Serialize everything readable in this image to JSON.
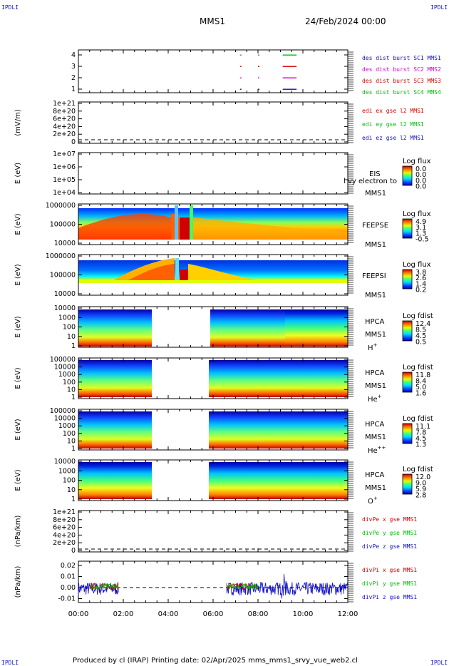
{
  "corner_label": "IPDLI",
  "header": {
    "spacecraft": "MMS1",
    "date": "24/Feb/2024 00:00"
  },
  "footer": "Produced by cl (IRAP)   Printing date: 02/Apr/2025   mms_mms1_srvy_vue_web2.cl",
  "colors": {
    "mms1": "#1010c8",
    "mms2": "#d000d0",
    "mms3": "#d00000",
    "mms4": "#00c000",
    "x": "#d00000",
    "y": "#00c000",
    "z": "#1010c8"
  },
  "chart_data": [
    {
      "type": "scatter",
      "panel": "burst",
      "y_ticks": [
        "4",
        "3",
        "2",
        "1"
      ],
      "ylim": [
        0.5,
        4.5
      ],
      "legend": [
        "des dist burst SC1 MMS1",
        "des dist burst SC2 MMS2",
        "des dist burst SC3 MMS3",
        "des dist burst SC4 MMS4"
      ],
      "series": [
        {
          "name": "des dist burst SC1 MMS1",
          "y": 1,
          "x_hours": [
            7.2,
            8.0,
            9.1,
            9.4
          ]
        },
        {
          "name": "des dist burst SC2 MMS2",
          "y": 2,
          "x_hours": [
            7.2,
            8.0,
            9.1,
            9.4
          ]
        },
        {
          "name": "des dist burst SC3 MMS3",
          "y": 3,
          "x_hours": [
            7.2,
            8.0,
            9.1,
            9.4
          ]
        },
        {
          "name": "des dist burst SC4 MMS4",
          "y": 4,
          "x_hours": [
            7.2,
            8.0,
            9.1,
            9.4
          ]
        }
      ]
    },
    {
      "type": "line",
      "panel": "edi",
      "ylabel": "(mV/m)",
      "y_ticks": [
        "1e+21",
        "8e+20",
        "6e+20",
        "4e+20",
        "2e+20",
        "0"
      ],
      "legend": [
        "edi ex gse l2 MMS1",
        "edi ey gse l2 MMS1",
        "edi ez gse l2 MMS1"
      ]
    },
    {
      "type": "heatmap",
      "panel": "eis",
      "ylabel": "E (eV)",
      "y_ticks": [
        "1e+07",
        "1e+06",
        "1e+05",
        "1e+04"
      ],
      "label": "EIS",
      "sublabel": "MMS1",
      "overlap_text": "l vy electron to",
      "cbar_title": "Log flux",
      "cbar_ticks": [
        "0.0",
        "0.0",
        "0.0",
        "0.0"
      ]
    },
    {
      "type": "heatmap",
      "panel": "feepse",
      "ylabel": "E (eV)",
      "y_ticks": [
        "1000000",
        "100000",
        "10000"
      ],
      "label": "FEEPSE",
      "sublabel": "MMS1",
      "cbar_title": "Log flux",
      "cbar_ticks": [
        "4.9",
        "3.1",
        "1.3",
        "-0.5"
      ]
    },
    {
      "type": "heatmap",
      "panel": "feepsi",
      "ylabel": "E (eV)",
      "y_ticks": [
        "1000000",
        "100000",
        "10000"
      ],
      "label": "FEEPSI",
      "sublabel": "MMS1",
      "cbar_title": "Log flux",
      "cbar_ticks": [
        "3.8",
        "2.6",
        "1.4",
        "0.2"
      ]
    },
    {
      "type": "heatmap",
      "panel": "hpca_h",
      "ylabel": "E (eV)",
      "y_ticks": [
        "10000",
        "1000",
        "100",
        "10",
        "1"
      ],
      "label": "HPCA",
      "sublabel": "MMS1",
      "species": "H",
      "charge": "+",
      "cbar_title": "Log fdist",
      "cbar_ticks": [
        "12.4",
        "8.5",
        "4.5",
        "0.5"
      ]
    },
    {
      "type": "heatmap",
      "panel": "hpca_he",
      "ylabel": "E (eV)",
      "y_ticks": [
        "100000",
        "10000",
        "1000",
        "100",
        "10",
        "1"
      ],
      "label": "HPCA",
      "sublabel": "MMS1",
      "species": "He",
      "charge": "+",
      "cbar_title": "Log fdist",
      "cbar_ticks": [
        "11.8",
        "8.4",
        "5.0",
        "1.6"
      ]
    },
    {
      "type": "heatmap",
      "panel": "hpca_hepp",
      "ylabel": "E (eV)",
      "y_ticks": [
        "100000",
        "10000",
        "1000",
        "100",
        "10",
        "1"
      ],
      "label": "HPCA",
      "sublabel": "MMS1",
      "species": "He",
      "charge": "++",
      "cbar_title": "Log fdist",
      "cbar_ticks": [
        "11.1",
        "7.8",
        "4.5",
        "1.3"
      ]
    },
    {
      "type": "heatmap",
      "panel": "hpca_o",
      "ylabel": "E (eV)",
      "y_ticks": [
        "10000",
        "1000",
        "100",
        "10",
        "1"
      ],
      "label": "HPCA",
      "sublabel": "MMS1",
      "species": "O",
      "charge": "+",
      "cbar_title": "Log fdist",
      "cbar_ticks": [
        "12.0",
        "9.0",
        "5.9",
        "2.8"
      ]
    },
    {
      "type": "line",
      "panel": "divpe",
      "ylabel": "(nPa/km)",
      "y_ticks": [
        "1e+21",
        "8e+20",
        "6e+20",
        "4e+20",
        "2e+20",
        "0"
      ],
      "legend": [
        "divPe x gse MMS1",
        "divPe y gse MMS1",
        "divPe z gse MMS1"
      ]
    },
    {
      "type": "line",
      "panel": "divpi",
      "ylabel": "(nPa/km)",
      "y_ticks": [
        "0.02",
        "0.01",
        "0.00",
        "-0.01"
      ],
      "ylim": [
        -0.015,
        0.022
      ],
      "legend": [
        "divPi x gse MMS1",
        "divPi y gse MMS1",
        "divPi z gse MMS1"
      ],
      "x_ticks": [
        "00:00",
        "02:00",
        "04:00",
        "06:00",
        "08:00",
        "10:00",
        "12:00"
      ]
    }
  ]
}
